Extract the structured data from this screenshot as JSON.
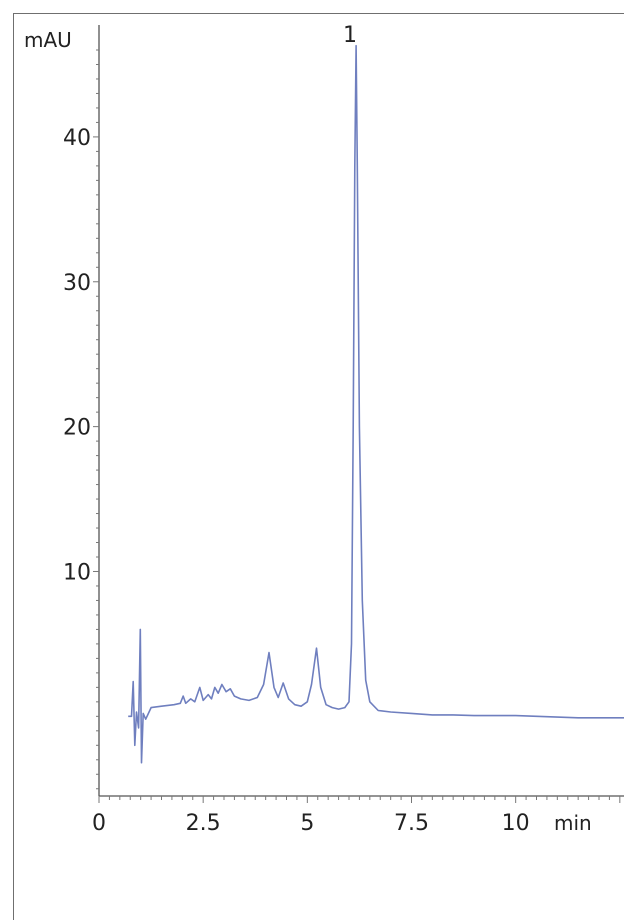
{
  "chart_data": {
    "type": "line",
    "title": "",
    "ylabel": "mAU",
    "xlabel": "min",
    "xlim": [
      0,
      12.6
    ],
    "ylim": [
      -5.5,
      46
    ],
    "x_ticks": [
      {
        "value": 0,
        "label": "0"
      },
      {
        "value": 2.5,
        "label": "2.5"
      },
      {
        "value": 5,
        "label": "5"
      },
      {
        "value": 7.5,
        "label": "7.5"
      },
      {
        "value": 10,
        "label": "10"
      }
    ],
    "y_ticks": [
      {
        "value": 10,
        "label": "10"
      },
      {
        "value": 20,
        "label": "20"
      },
      {
        "value": 30,
        "label": "30"
      },
      {
        "value": 40,
        "label": "40"
      }
    ],
    "grid": false,
    "annotations": [
      {
        "x": 6.17,
        "y": 46.3,
        "label": "1"
      }
    ],
    "series": [
      {
        "color": "#6f7fbf",
        "points": [
          [
            0.7,
            0.0
          ],
          [
            0.78,
            0.0
          ],
          [
            0.82,
            2.4
          ],
          [
            0.86,
            -2.0
          ],
          [
            0.9,
            0.3
          ],
          [
            0.95,
            -0.8
          ],
          [
            0.99,
            6.0
          ],
          [
            1.02,
            -3.2
          ],
          [
            1.06,
            0.2
          ],
          [
            1.12,
            -0.2
          ],
          [
            1.25,
            0.6
          ],
          [
            1.5,
            0.7
          ],
          [
            1.8,
            0.8
          ],
          [
            1.95,
            0.9
          ],
          [
            2.02,
            1.4
          ],
          [
            2.08,
            0.9
          ],
          [
            2.2,
            1.2
          ],
          [
            2.3,
            1.0
          ],
          [
            2.42,
            2.0
          ],
          [
            2.5,
            1.1
          ],
          [
            2.62,
            1.5
          ],
          [
            2.7,
            1.2
          ],
          [
            2.78,
            2.0
          ],
          [
            2.86,
            1.6
          ],
          [
            2.95,
            2.2
          ],
          [
            3.05,
            1.7
          ],
          [
            3.15,
            1.9
          ],
          [
            3.25,
            1.4
          ],
          [
            3.4,
            1.2
          ],
          [
            3.6,
            1.1
          ],
          [
            3.8,
            1.3
          ],
          [
            3.95,
            2.2
          ],
          [
            4.08,
            4.4
          ],
          [
            4.2,
            2.0
          ],
          [
            4.3,
            1.3
          ],
          [
            4.42,
            2.3
          ],
          [
            4.55,
            1.2
          ],
          [
            4.7,
            0.8
          ],
          [
            4.85,
            0.7
          ],
          [
            5.0,
            1.0
          ],
          [
            5.1,
            2.2
          ],
          [
            5.22,
            4.7
          ],
          [
            5.32,
            2.0
          ],
          [
            5.45,
            0.8
          ],
          [
            5.6,
            0.6
          ],
          [
            5.75,
            0.5
          ],
          [
            5.9,
            0.6
          ],
          [
            6.0,
            1.0
          ],
          [
            6.06,
            5.0
          ],
          [
            6.1,
            20.0
          ],
          [
            6.14,
            38.0
          ],
          [
            6.17,
            46.3
          ],
          [
            6.2,
            38.0
          ],
          [
            6.25,
            20.0
          ],
          [
            6.32,
            8.0
          ],
          [
            6.4,
            2.5
          ],
          [
            6.5,
            1.0
          ],
          [
            6.7,
            0.4
          ],
          [
            7.0,
            0.3
          ],
          [
            7.5,
            0.2
          ],
          [
            8.0,
            0.1
          ],
          [
            8.5,
            0.1
          ],
          [
            9.0,
            0.05
          ],
          [
            9.5,
            0.05
          ],
          [
            10.0,
            0.05
          ],
          [
            10.5,
            0.0
          ],
          [
            11.0,
            -0.05
          ],
          [
            11.5,
            -0.1
          ],
          [
            12.0,
            -0.1
          ],
          [
            12.6,
            -0.1
          ]
        ]
      }
    ]
  }
}
